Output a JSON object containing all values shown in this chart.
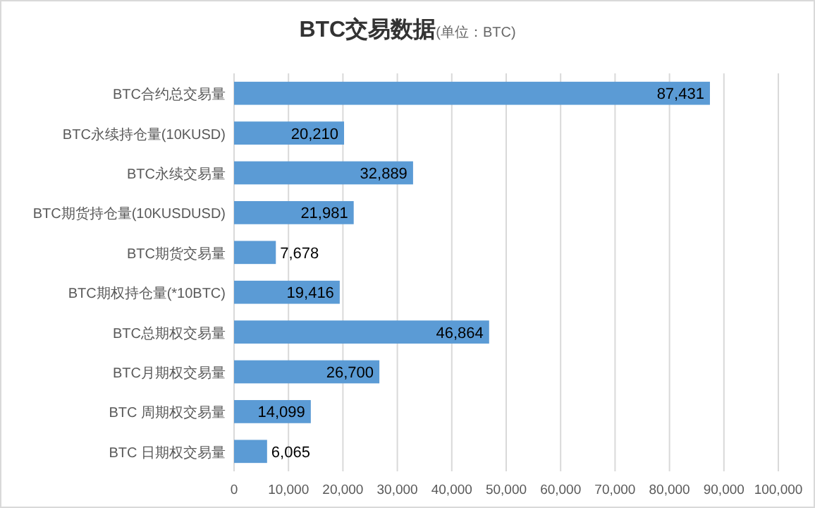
{
  "chart_data": {
    "type": "bar",
    "orientation": "horizontal",
    "title": "BTC交易数据",
    "subtitle": "(单位：BTC)",
    "categories": [
      "BTC合约总交易量",
      "BTC永续持仓量(10KUSD)",
      "BTC永续交易量",
      "BTC期货持仓量(10KUSDUSD)",
      "BTC期货交易量",
      "BTC期权持仓量(*10BTC)",
      "BTC总期权交易量",
      "BTC月期权交易量",
      "BTC  周期权交易量",
      "BTC  日期权交易量"
    ],
    "values": [
      87431,
      20210,
      32889,
      21981,
      7678,
      19416,
      46864,
      26700,
      14099,
      6065
    ],
    "value_labels": [
      "87,431",
      "20,210",
      "32,889",
      "21,981",
      "7,678",
      "19,416",
      "46,864",
      "26,700",
      "14,099",
      "6,065"
    ],
    "color": "#5b9bd5",
    "grid": "x",
    "xlim": [
      0,
      100000
    ],
    "xticks": [
      0,
      {
        "value": 10000,
        "label": "10,000"
      },
      {
        "value": 20000,
        "label": "20,000"
      },
      {
        "value": 30000,
        "label": "30,000"
      },
      {
        "value": 40000,
        "label": "40,000"
      },
      {
        "value": 50000,
        "label": "50,000"
      },
      {
        "value": 60000,
        "label": "60,000"
      },
      {
        "value": 70000,
        "label": "70,000"
      },
      {
        "value": 80000,
        "label": "80,000"
      },
      {
        "value": 90000,
        "label": "90,000"
      },
      {
        "value": 100000,
        "label": "100,000"
      }
    ]
  }
}
